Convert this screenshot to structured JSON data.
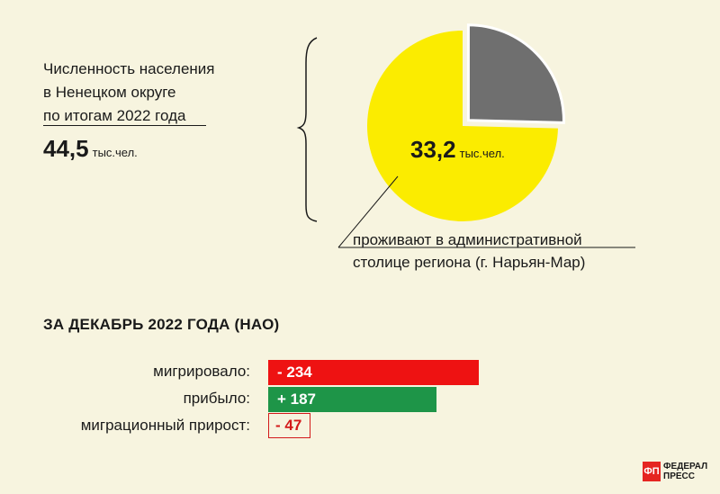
{
  "intro": {
    "lines": [
      "Численность населения",
      "в Ненецком округе",
      "по итогам 2022 года"
    ],
    "total_value": "44,5",
    "total_unit": "тыс.чел."
  },
  "pie": {
    "center_value": "33,2",
    "center_unit": "тыс.чел.",
    "caption_lines": [
      "проживают в административной",
      "столице региона (г. Нарьян-Мар)"
    ]
  },
  "section_title": "ЗА ДЕКАБРЬ 2022 ГОДА (НАО)",
  "logo": {
    "mark": "ФП",
    "line1": "ФЕДЕРАЛ",
    "line2": "ПРЕСС"
  },
  "colors": {
    "background": "#f7f4df",
    "pie_capital": "#fbec00",
    "pie_rest": "#6f6f6f",
    "migrated": "#ee1212",
    "arrived": "#1e9548",
    "growth_outline": "#d31a1a"
  },
  "chart_data": [
    {
      "type": "pie",
      "total": 44.5,
      "slices": [
        {
          "value": 33.2,
          "color": "#fbec00"
        },
        {
          "value": 11.3,
          "color": "#6f6f6f"
        }
      ]
    },
    {
      "type": "bar",
      "orientation": "horizontal",
      "categories": [
        "мигрировало:",
        "прибыло:",
        "миграционный прирост:"
      ],
      "values": [
        -234,
        187,
        -47
      ],
      "value_labels": [
        "- 234",
        "+ 187",
        "- 47"
      ]
    }
  ]
}
